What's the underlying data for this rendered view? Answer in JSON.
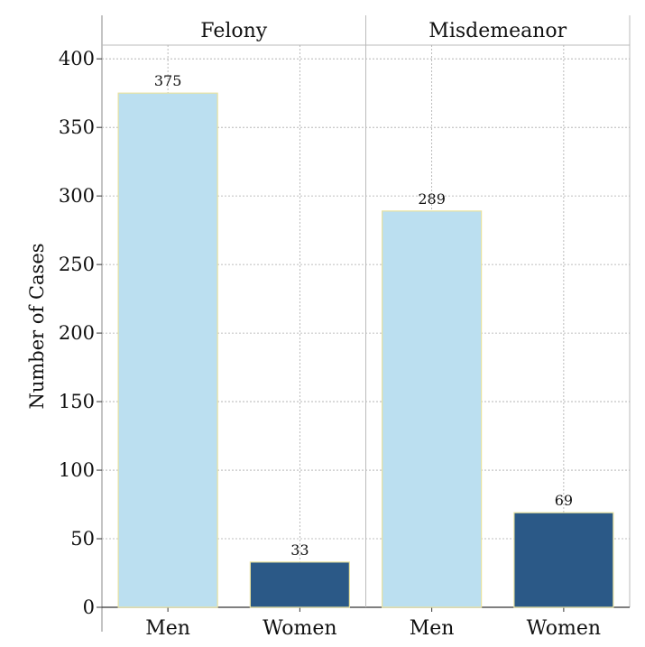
{
  "chart_data": {
    "type": "bar",
    "ylabel": "Number of Cases",
    "ylim": [
      0,
      410
    ],
    "yticks": [
      0,
      50,
      100,
      150,
      200,
      250,
      300,
      350,
      400
    ],
    "grid": true,
    "colors": {
      "Men": "#bbdff0",
      "Women": "#2b5987",
      "bar_edge": "#e8e2a0"
    },
    "panels": [
      {
        "title": "Felony",
        "categories": [
          "Men",
          "Women"
        ],
        "values": [
          375,
          33
        ]
      },
      {
        "title": "Misdemeanor",
        "categories": [
          "Men",
          "Women"
        ],
        "values": [
          289,
          69
        ]
      }
    ]
  }
}
